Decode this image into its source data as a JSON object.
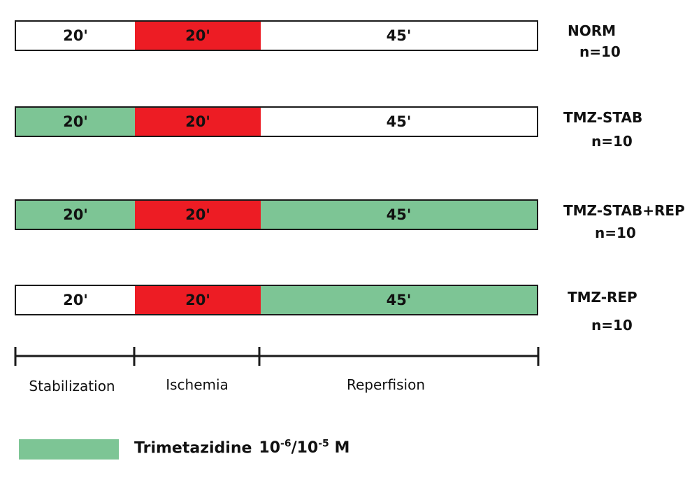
{
  "colors": {
    "trimetazidine": "#7dc595",
    "ischemia": "#ed1c24",
    "untreated": "#ffffff"
  },
  "groups": [
    {
      "label": "NORM",
      "n": "n=10",
      "segments": [
        {
          "text": "20'",
          "fill": "untreated"
        },
        {
          "text": "20'",
          "fill": "ischemia"
        },
        {
          "text": "45'",
          "fill": "untreated"
        }
      ]
    },
    {
      "label": "TMZ-STAB",
      "n": "n=10",
      "segments": [
        {
          "text": "20'",
          "fill": "trimetazidine"
        },
        {
          "text": "20'",
          "fill": "ischemia"
        },
        {
          "text": "45'",
          "fill": "untreated"
        }
      ]
    },
    {
      "label": "TMZ-STAB+REP",
      "n": "n=10",
      "segments": [
        {
          "text": "20'",
          "fill": "trimetazidine"
        },
        {
          "text": "20'",
          "fill": "ischemia"
        },
        {
          "text": "45'",
          "fill": "trimetazidine"
        }
      ]
    },
    {
      "label": "TMZ-REP",
      "n": "n=10",
      "segments": [
        {
          "text": "20'",
          "fill": "untreated"
        },
        {
          "text": "20'",
          "fill": "ischemia"
        },
        {
          "text": "45'",
          "fill": "trimetazidine"
        }
      ]
    }
  ],
  "phases": [
    "Stabilization",
    "Ischemia",
    "Reperfision"
  ],
  "legend": {
    "label": "Trimetazidine",
    "conc_base1": "10",
    "conc_exp1": "-6",
    "conc_sep": "/10",
    "conc_exp2": "-5",
    "conc_unit": " M"
  }
}
